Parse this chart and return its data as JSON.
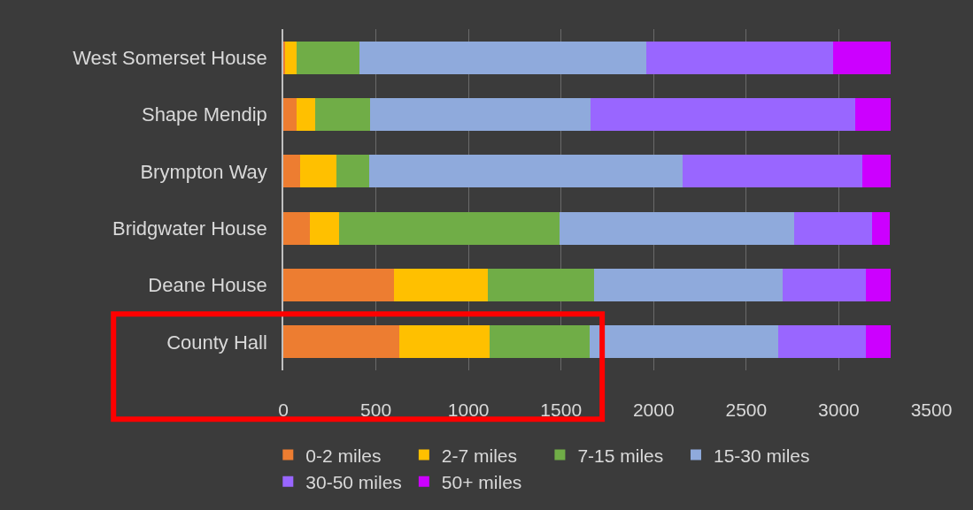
{
  "chart_data": {
    "type": "bar",
    "orientation": "horizontal",
    "stacked": true,
    "categories": [
      "West Somerset House",
      "Shape Mendip",
      "Brympton Way",
      "Bridgwater House",
      "Deane House",
      "County Hall"
    ],
    "series": [
      {
        "name": "0-2 miles",
        "color": "#ed7d31",
        "values": [
          10,
          70,
          90,
          145,
          600,
          625
        ]
      },
      {
        "name": "2-7 miles",
        "color": "#ffc000",
        "values": [
          60,
          100,
          195,
          155,
          505,
          490
        ]
      },
      {
        "name": "7-15 miles",
        "color": "#70ad47",
        "values": [
          340,
          300,
          180,
          1190,
          575,
          540
        ]
      },
      {
        "name": "15-30 miles",
        "color": "#8faadc",
        "values": [
          1550,
          1190,
          1690,
          1270,
          1015,
          1020
        ]
      },
      {
        "name": "30-50 miles",
        "color": "#9966ff",
        "values": [
          1010,
          1430,
          970,
          420,
          450,
          470
        ]
      },
      {
        "name": "50+ miles",
        "color": "#cc00ff",
        "values": [
          310,
          190,
          155,
          95,
          135,
          135
        ]
      }
    ],
    "xlim": [
      0,
      3500
    ],
    "xticks": [
      0,
      500,
      1000,
      1500,
      2000,
      2500,
      3000,
      3500
    ],
    "grid": "x",
    "legend": "bottom"
  }
}
